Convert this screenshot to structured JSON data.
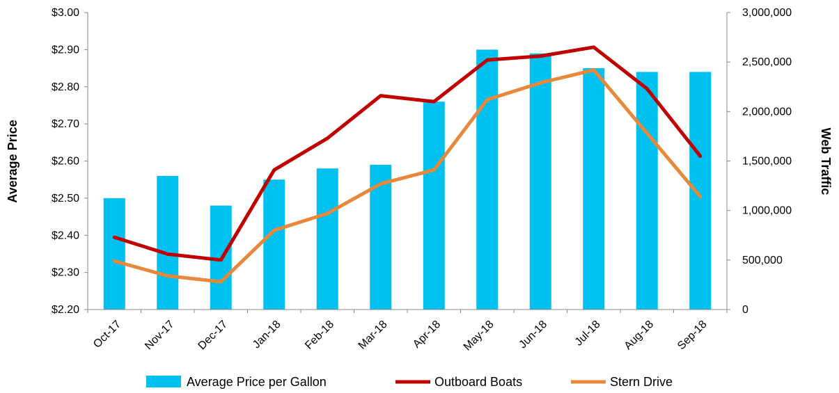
{
  "chart_data": {
    "type": "bar",
    "categories": [
      "Oct-17",
      "Nov-17",
      "Dec-17",
      "Jan-18",
      "Feb-18",
      "Mar-18",
      "Apr-18",
      "May-18",
      "Jun-18",
      "Jul-18",
      "Aug-18",
      "Sep-18"
    ],
    "series": [
      {
        "name": "Average Price per Gallon",
        "type": "bar",
        "axis": "left",
        "color": "#00C0F0",
        "values": [
          2.5,
          2.56,
          2.48,
          2.55,
          2.58,
          2.59,
          2.76,
          2.9,
          2.89,
          2.85,
          2.84,
          2.84
        ]
      },
      {
        "name": "Outboard Boats",
        "type": "line",
        "axis": "right",
        "color": "#C00000",
        "values": [
          730000,
          560000,
          500000,
          1410000,
          1730000,
          2160000,
          2100000,
          2520000,
          2560000,
          2650000,
          2230000,
          1550000
        ]
      },
      {
        "name": "Stern Drive",
        "type": "line",
        "axis": "right",
        "color": "#E8883A",
        "values": [
          490000,
          340000,
          280000,
          800000,
          970000,
          1270000,
          1410000,
          2120000,
          2290000,
          2420000,
          1780000,
          1140000
        ]
      }
    ],
    "ylabel": "Average Price",
    "y2label": "Web Traffic",
    "ylim": [
      2.2,
      3.0
    ],
    "y2lim": [
      0,
      3000000
    ],
    "yticks": [
      "$2.20",
      "$2.30",
      "$2.40",
      "$2.50",
      "$2.60",
      "$2.70",
      "$2.80",
      "$2.90",
      "$3.00"
    ],
    "y2ticks": [
      "0",
      "500,000",
      "1,000,000",
      "1,500,000",
      "2,000,000",
      "2,500,000",
      "3,000,000"
    ],
    "grid": false,
    "legend_position": "bottom"
  }
}
